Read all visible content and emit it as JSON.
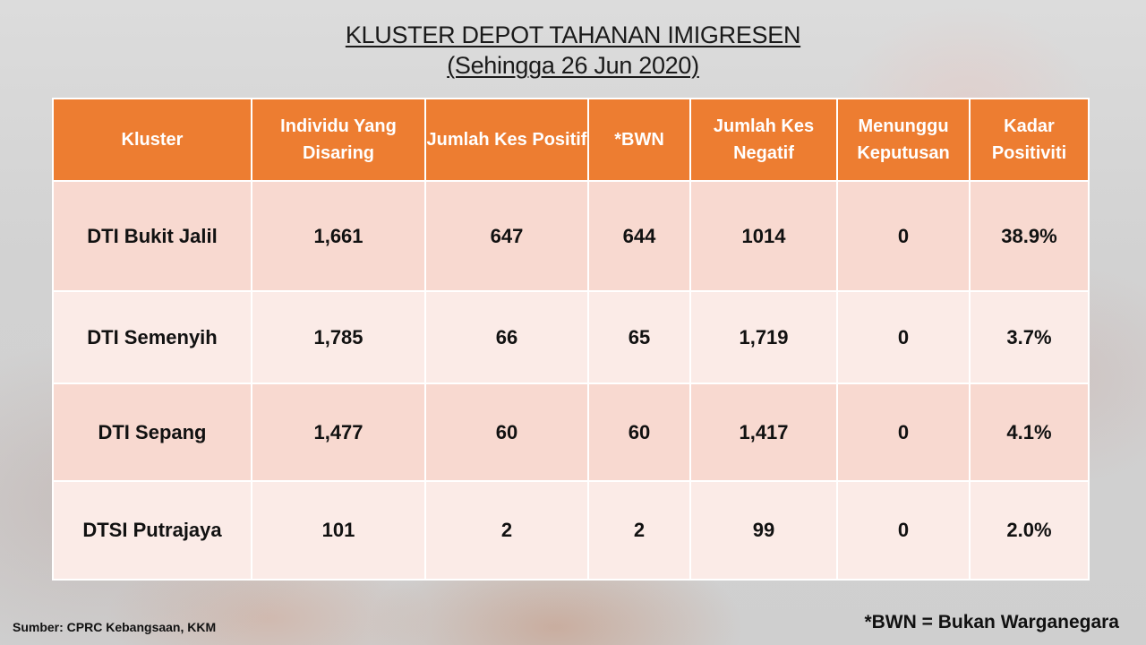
{
  "title": {
    "line1": "KLUSTER DEPOT TAHANAN IMIGRESEN",
    "line2": "(Sehingga 26 Jun 2020)"
  },
  "table": {
    "headers": [
      "Kluster",
      "Individu Yang Disaring",
      "Jumlah Kes Positif",
      "*BWN",
      "Jumlah Kes Negatif",
      "Menunggu Keputusan",
      "Kadar Positiviti"
    ],
    "rows": [
      [
        "DTI Bukit Jalil",
        "1,661",
        "647",
        "644",
        "1014",
        "0",
        "38.9%"
      ],
      [
        "DTI Semenyih",
        "1,785",
        "66",
        "65",
        "1,719",
        "0",
        "3.7%"
      ],
      [
        "DTI Sepang",
        "1,477",
        "60",
        "60",
        "1,417",
        "0",
        "4.1%"
      ],
      [
        "DTSI Putrajaya",
        "101",
        "2",
        "2",
        "99",
        "0",
        "2.0%"
      ]
    ]
  },
  "footer": {
    "source": "Sumber: CPRC Kebangsaan, KKM",
    "note": "*BWN = Bukan Warganegara"
  },
  "colors": {
    "header_bg": "#ed7d31",
    "row_dark": "#f8d9d0",
    "row_light": "#fbebe7"
  }
}
